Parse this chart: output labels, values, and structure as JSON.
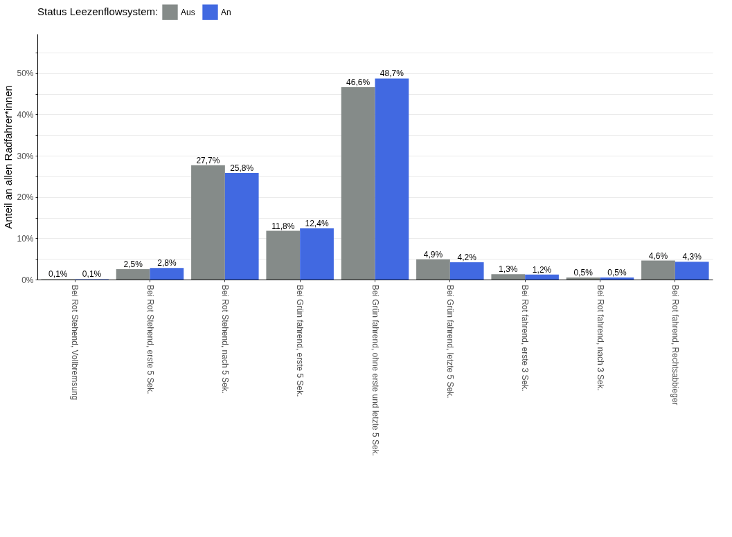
{
  "chart_data": {
    "type": "bar",
    "ylabel": "Anteil an allen Radfahrer*innen",
    "legend_title": "Status Leezenflowsystem:",
    "categories": [
      "Bei Rot Stehend, Vollbremsung",
      "Bei Rot Stehend, erste 5 Sek.",
      "Bei Rot Stehend, nach 5 Sek.",
      "Bei Grün fahrend, erste 5 Sek.",
      "Bei Grün fahrend, ohne erste und letzte 5 Sek.",
      "Bei Grün fahrend, letzte 5 Sek.",
      "Bei Rot fahrend, erste 3 Sek.",
      "Bei Rot fahrend, nach 3 Sek.",
      "Bei Rot fahrend, Rechtsabbieger"
    ],
    "series": [
      {
        "name": "Aus",
        "color": "#858b89",
        "values": [
          0.1,
          2.5,
          27.7,
          11.8,
          46.6,
          4.9,
          1.3,
          0.5,
          4.6
        ],
        "value_labels": [
          "0,1%",
          "2,5%",
          "27,7%",
          "11,8%",
          "46,6%",
          "4,9%",
          "1,3%",
          "0,5%",
          "4,6%"
        ]
      },
      {
        "name": "An",
        "color": "#4169e1",
        "values": [
          0.1,
          2.8,
          25.8,
          12.4,
          48.7,
          4.2,
          1.2,
          0.5,
          4.3
        ],
        "value_labels": [
          "0,1%",
          "2,8%",
          "25,8%",
          "12,4%",
          "48,7%",
          "4,2%",
          "1,2%",
          "0,5%",
          "4,3%"
        ]
      }
    ],
    "ylim": [
      0,
      59.5
    ],
    "yticks": [
      {
        "value": 0,
        "label": "0%"
      },
      {
        "value": 5,
        "label": null
      },
      {
        "value": 10,
        "label": "10%"
      },
      {
        "value": 15,
        "label": null
      },
      {
        "value": 20,
        "label": "20%"
      },
      {
        "value": 25,
        "label": null
      },
      {
        "value": 30,
        "label": "30%"
      },
      {
        "value": 35,
        "label": null
      },
      {
        "value": 40,
        "label": "40%"
      },
      {
        "value": 45,
        "label": null
      },
      {
        "value": 50,
        "label": "50%"
      },
      {
        "value": 55,
        "label": null
      }
    ],
    "grid": "y",
    "legend": "top"
  }
}
